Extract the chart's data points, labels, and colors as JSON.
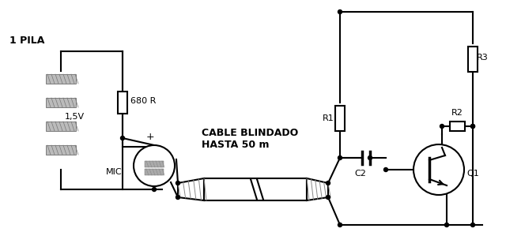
{
  "bg_color": "#ffffff",
  "labels": {
    "pila": "1 PILA",
    "voltage": "1,5V",
    "resistor_680": "680 R",
    "mic": "MIC",
    "cable_line1": "CABLE BLINDADO",
    "cable_line2": "HASTA 50 m",
    "R1": "R1",
    "R2": "R2",
    "R3": "R3",
    "C2": "C2",
    "Q1": "Q1",
    "plus": "+"
  },
  "figsize": [
    6.4,
    3.13
  ],
  "dpi": 100
}
